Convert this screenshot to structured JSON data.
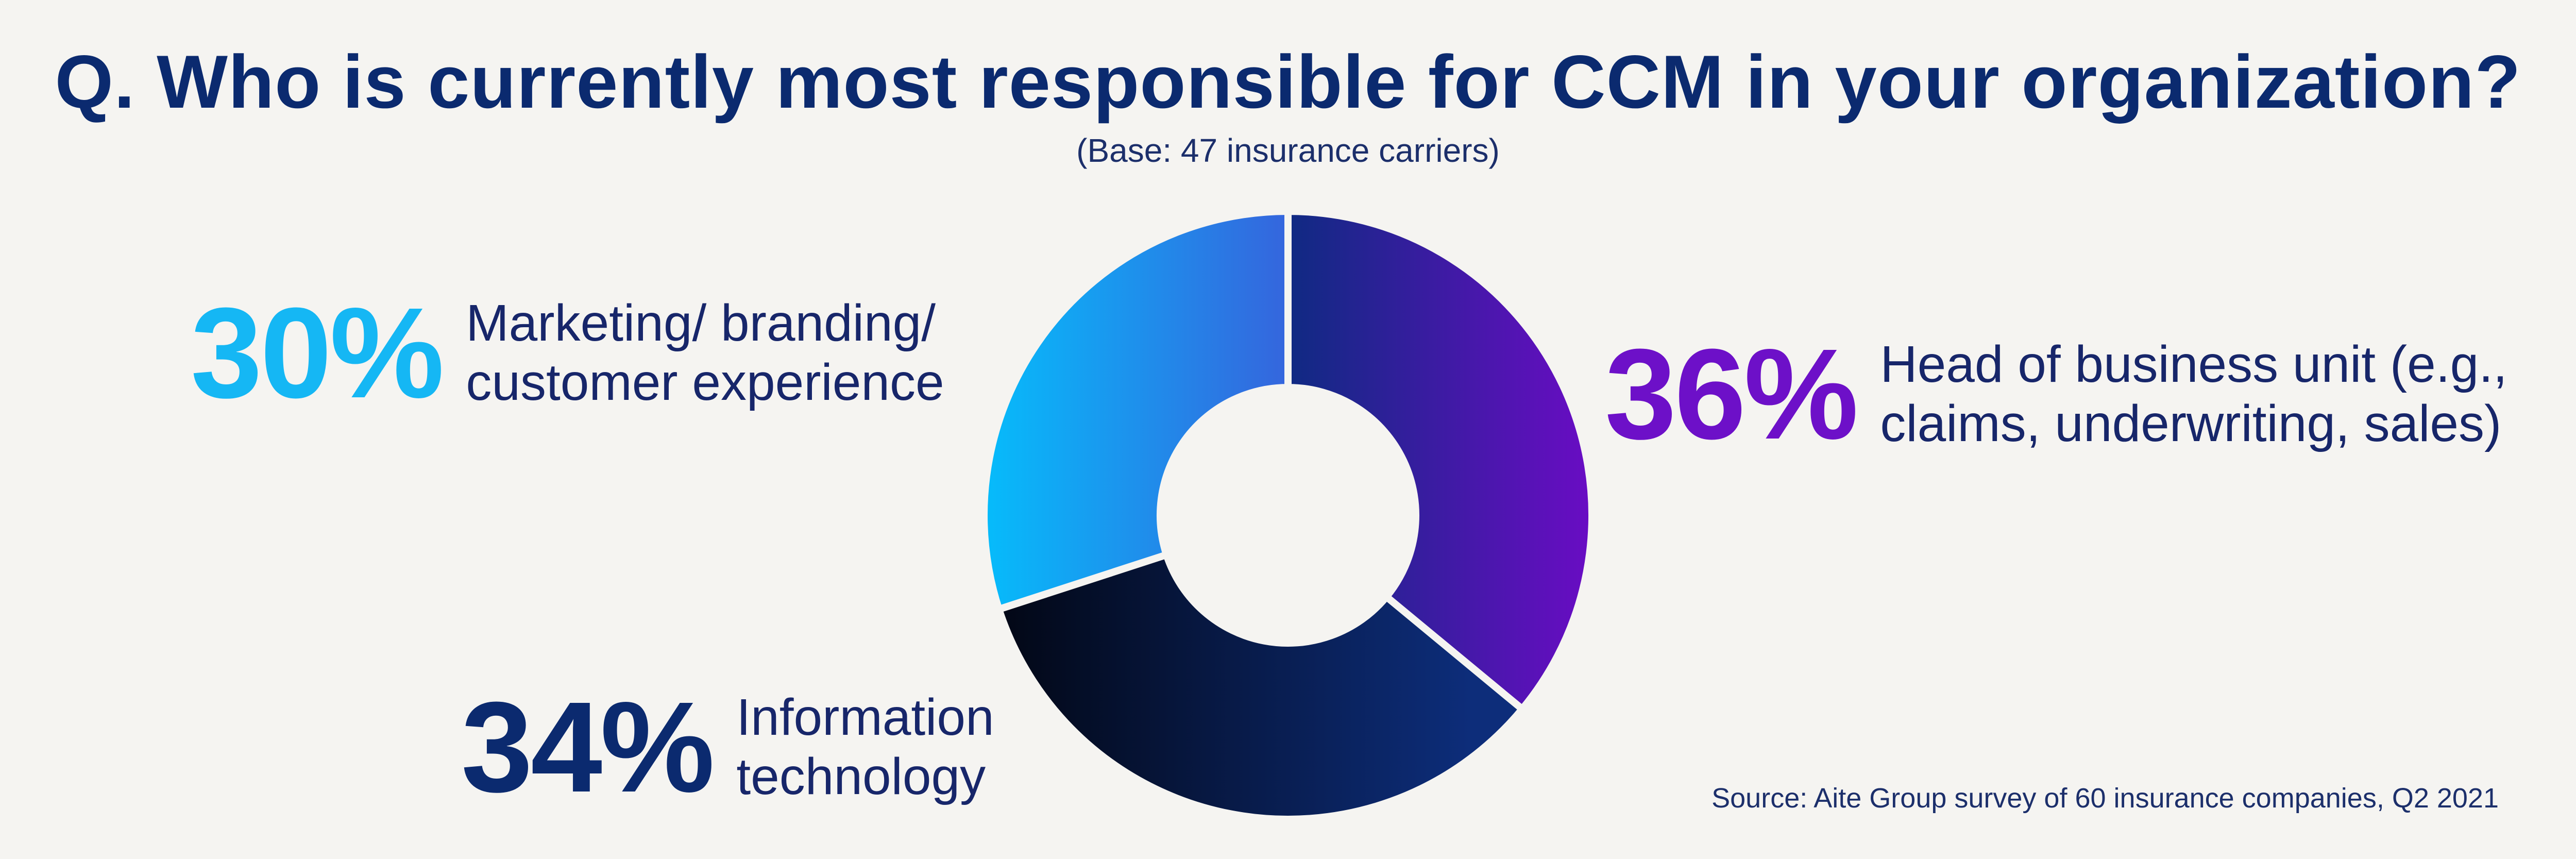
{
  "chart_data": {
    "type": "pie",
    "title": "Q. Who is currently most responsible for CCM in your organization?",
    "subtitle": "(Base: 47 insurance carriers)",
    "source": "Source: Aite Group survey of 60 insurance companies, Q2 2021",
    "slices": [
      {
        "key": "business",
        "label": "Head of business unit (e.g., claims, underwriting, sales)",
        "value": 36,
        "value_label": "36%",
        "gradient": [
          "#0f2a82",
          "#6a0cc4"
        ]
      },
      {
        "key": "it",
        "label": "Information technology",
        "value": 34,
        "value_label": "34%",
        "gradient": [
          "#020612",
          "#0d2d7a"
        ]
      },
      {
        "key": "marketing",
        "label": "Marketing/ branding/ customer experience",
        "value": 30,
        "value_label": "30%",
        "gradient": [
          "#06bcfb",
          "#3565dd"
        ]
      }
    ]
  },
  "callouts": {
    "marketing": {
      "pct": "30%",
      "text": "Marketing/ branding/\ncustomer experience"
    },
    "business": {
      "pct": "36%",
      "text": "Head of business unit (e.g.,\nclaims, underwriting, sales)"
    },
    "it": {
      "pct": "34%",
      "text": "Information\ntechnology"
    }
  },
  "colors": {
    "background": "#f5f4f1",
    "title": "#0b2a6f",
    "marketing_accent": "#15b7f4",
    "business_accent": "#6d10c8",
    "it_accent": "#0b2a6f"
  }
}
